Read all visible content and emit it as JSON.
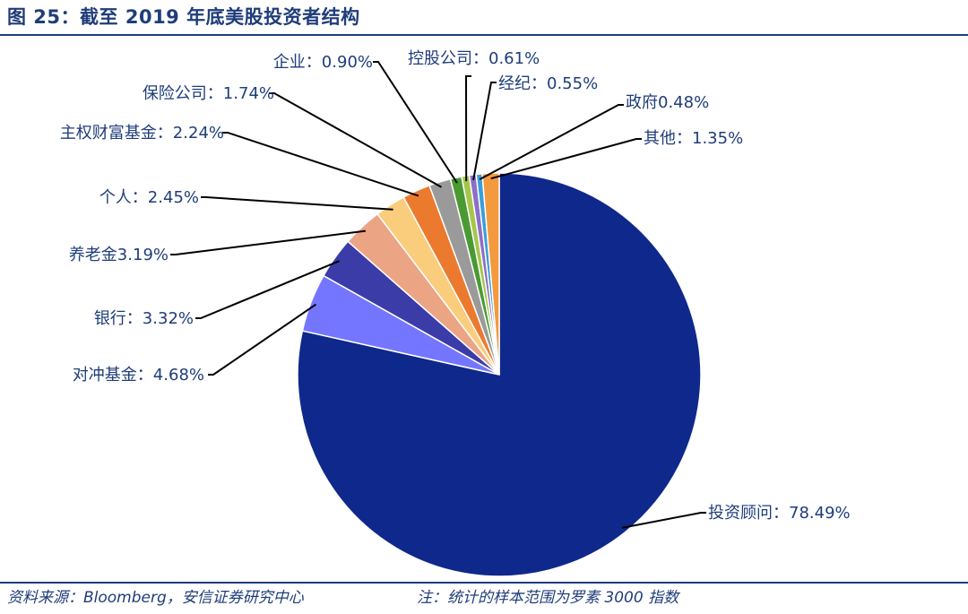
{
  "header": {
    "title": "图 25：截至 2019 年底美股投资者结构"
  },
  "footer": {
    "source": "资料来源：Bloomberg，安信证券研究中心",
    "note": "注：统计的样本范围为罗素 3000 指数"
  },
  "chart_data": {
    "type": "pie",
    "start": "12 o'clock, clockwise",
    "slices": [
      {
        "name": "投资顾问",
        "value": 78.49,
        "label": "投资顾问：78.49%",
        "color": "#0f288c"
      },
      {
        "name": "对冲基金",
        "value": 4.68,
        "label": "对冲基金：4.68%",
        "color": "#7476ff"
      },
      {
        "name": "银行",
        "value": 3.32,
        "label": "银行：3.32%",
        "color": "#3b3ca8"
      },
      {
        "name": "养老金",
        "value": 3.19,
        "label": "养老金3.19%",
        "color": "#eba585"
      },
      {
        "name": "个人",
        "value": 2.45,
        "label": "个人：2.45%",
        "color": "#f9cd7c"
      },
      {
        "name": "主权财富基金",
        "value": 2.24,
        "label": "主权财富基金：2.24%",
        "color": "#ec7a2e"
      },
      {
        "name": "保险公司",
        "value": 1.74,
        "label": "保险公司：1.74%",
        "color": "#9a9a9a"
      },
      {
        "name": "企业",
        "value": 0.9,
        "label": "企业：0.90%",
        "color": "#4a9a34"
      },
      {
        "name": "控股公司",
        "value": 0.61,
        "label": "控股公司：0.61%",
        "color": "#a5c64b"
      },
      {
        "name": "经纪",
        "value": 0.55,
        "label": "经纪：0.55%",
        "color": "#8e6ec8"
      },
      {
        "name": "政府",
        "value": 0.48,
        "label": "政府0.48%",
        "color": "#3a9ed8"
      },
      {
        "name": "其他",
        "value": 1.35,
        "label": "其他：1.35%",
        "color": "#f39a3e"
      }
    ]
  }
}
